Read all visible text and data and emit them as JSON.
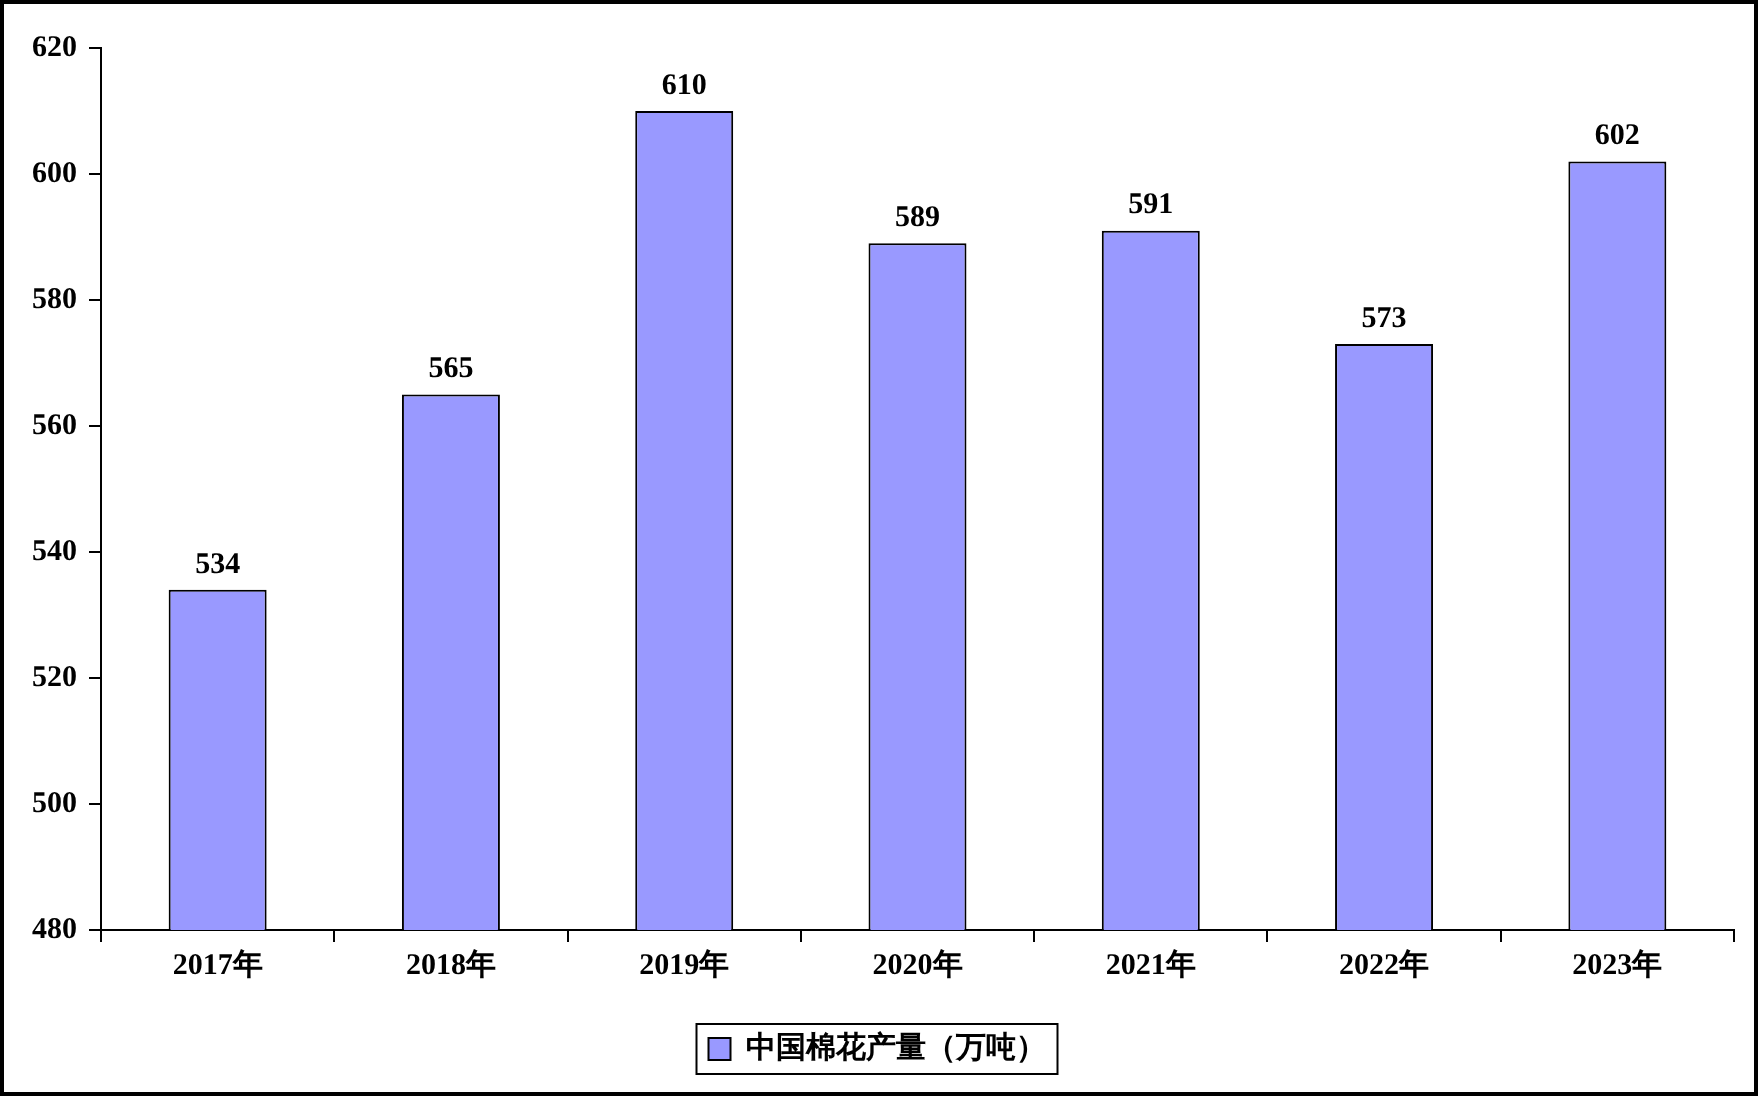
{
  "chart_data": {
    "type": "bar",
    "categories": [
      "2017年",
      "2018年",
      "2019年",
      "2020年",
      "2021年",
      "2022年",
      "2023年"
    ],
    "series": [
      {
        "name": "中国棉花产量（万吨）",
        "color": "#9999ff",
        "values": [
          534,
          565,
          610,
          589,
          591,
          573,
          602
        ]
      }
    ],
    "ylim": [
      480,
      620
    ],
    "yticks": [
      480,
      500,
      520,
      540,
      560,
      580,
      600,
      620
    ],
    "grid": false,
    "legend": "bottom",
    "data_labels": true
  }
}
